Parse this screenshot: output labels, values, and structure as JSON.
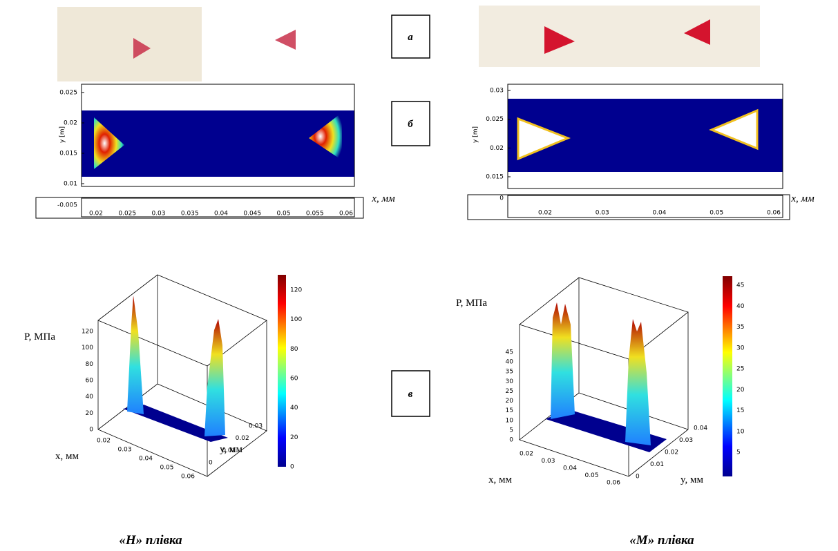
{
  "panel_labels": {
    "a": "а",
    "b": "б",
    "c": "в"
  },
  "left": {
    "heatmap": {
      "y_ticks": [
        "0.025",
        "0.02",
        "0.015",
        "0.01"
      ],
      "y_label": "y [m]",
      "strip_tick": "-0.005",
      "x_ticks": [
        "0.02",
        "0.025",
        "0.03",
        "0.035",
        "0.04",
        "0.045",
        "0.05",
        "0.055",
        "0.06"
      ],
      "x_label": "x, мм"
    },
    "plot3d": {
      "z_label": "P, МПа",
      "x_label": "x, мм",
      "y_label": "y, мм",
      "z_ticks": [
        "0",
        "20",
        "40",
        "60",
        "80",
        "100",
        "120"
      ],
      "x_ticks": [
        "0.02",
        "0.03",
        "0.04",
        "0.05",
        "0.06"
      ],
      "y_ticks": [
        "0",
        "0.01",
        "0.02",
        "0.03"
      ],
      "colorbar_ticks": [
        "0",
        "20",
        "40",
        "60",
        "80",
        "100",
        "120"
      ]
    },
    "caption": "«Н» плівка"
  },
  "right": {
    "heatmap": {
      "y_ticks": [
        "0.03",
        "0.025",
        "0.02",
        "0.015"
      ],
      "y_label": "y [m]",
      "strip_tick": "0",
      "x_ticks": [
        "0.02",
        "0.03",
        "0.04",
        "0.05",
        "0.06"
      ],
      "x_label": "x, мм"
    },
    "plot3d": {
      "z_label": "P, МПа",
      "x_label": "x, мм",
      "y_label": "y, мм",
      "z_ticks": [
        "0",
        "5",
        "10",
        "15",
        "20",
        "25",
        "30",
        "35",
        "40",
        "45"
      ],
      "x_ticks": [
        "0.02",
        "0.03",
        "0.04",
        "0.05",
        "0.06"
      ],
      "y_ticks": [
        "0",
        "0.01",
        "0.02",
        "0.03",
        "0.04"
      ],
      "colorbar_ticks": [
        "5",
        "10",
        "15",
        "20",
        "25",
        "30",
        "35",
        "40",
        "45"
      ]
    },
    "caption": "«М» плівка"
  }
}
